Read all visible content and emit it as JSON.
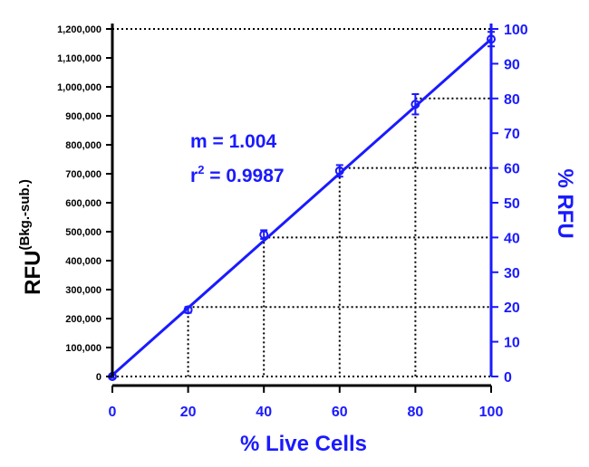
{
  "chart_data": {
    "type": "scatter",
    "xlabel": "% Live Cells",
    "ylabel": "RFU",
    "ylabel_superscript": "(Bkg.-sub.)",
    "y2label": "% RFU",
    "x": [
      0,
      20,
      40,
      60,
      80,
      100
    ],
    "series": [
      {
        "values": [
          0,
          230000,
          490000,
          710000,
          940000,
          1165000
        ],
        "error": [
          5000,
          10000,
          15000,
          20000,
          35000,
          25000
        ]
      }
    ],
    "fit_line": {
      "x": [
        0,
        100
      ],
      "y": [
        5000,
        1165000
      ]
    },
    "xlim": [
      0,
      100
    ],
    "ylim": [
      0,
      1200000
    ],
    "y2lim": [
      0,
      100
    ],
    "x_ticks": [
      "0",
      "20",
      "40",
      "60",
      "80",
      "100"
    ],
    "y_ticks": [
      "0",
      "100,000",
      "200,000",
      "300,000",
      "400,000",
      "500,000",
      "600,000",
      "700,000",
      "800,000",
      "900,000",
      "1,000,000",
      "1,100,000",
      "1,200,000"
    ],
    "y2_ticks": [
      "0",
      "10",
      "20",
      "30",
      "40",
      "50",
      "60",
      "70",
      "80",
      "90",
      "100"
    ],
    "reference_levels": [
      0,
      20,
      40,
      60,
      80,
      100
    ],
    "annotation": {
      "slope": "m = 1.004",
      "r_prefix": "r",
      "r_exp": "2",
      "r_value": " = 0.9987"
    },
    "colors": {
      "data": "#1a1aff",
      "axis": "#000000",
      "axis2": "#1a1aff",
      "guides": "#000000"
    },
    "grid": false
  }
}
